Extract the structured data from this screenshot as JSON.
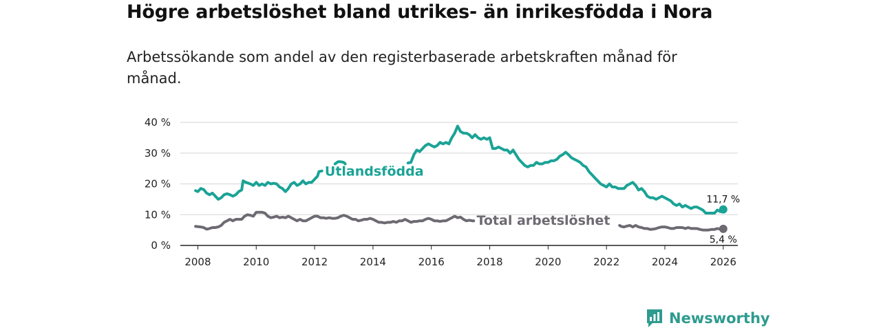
{
  "title": "Högre arbetslöshet bland utrikes- än inrikesfödda i Nora",
  "subtitle": "Arbetssökande som andel av den registerbaserade arbetskraften månad för månad.",
  "brand": {
    "name": "Newsworthy"
  },
  "colors": {
    "foreign": "#1aa396",
    "total": "#6d6a72",
    "grid": "#d4d4d4",
    "axis": "#222222",
    "brand": "#2e9b8f"
  },
  "chart_data": {
    "type": "line",
    "title": "Högre arbetslöshet bland utrikes- än inrikesfödda i Nora",
    "xlabel": "",
    "ylabel": "",
    "xlim": [
      2007.4,
      2026.5
    ],
    "ylim": [
      0,
      40
    ],
    "y_ticks": [
      0,
      10,
      20,
      30,
      40
    ],
    "y_tick_labels": [
      "0 %",
      "10 %",
      "20 %",
      "30 %",
      "40 %"
    ],
    "x_ticks": [
      2008,
      2010,
      2012,
      2014,
      2016,
      2018,
      2020,
      2022,
      2024,
      2026
    ],
    "x_tick_labels": [
      "2008",
      "2010",
      "2012",
      "2014",
      "2016",
      "2018",
      "2020",
      "2022",
      "2024",
      "2026"
    ],
    "grid": true,
    "series": [
      {
        "name": "Utlandsfödda",
        "end_label": "11,7 %",
        "points": [
          [
            2007.92,
            17.8
          ],
          [
            2008.0,
            17.5
          ],
          [
            2008.1,
            18.5
          ],
          [
            2008.2,
            18.2
          ],
          [
            2008.3,
            17.0
          ],
          [
            2008.4,
            16.5
          ],
          [
            2008.5,
            17.0
          ],
          [
            2008.6,
            16.0
          ],
          [
            2008.7,
            15.0
          ],
          [
            2008.8,
            15.5
          ],
          [
            2008.9,
            16.5
          ],
          [
            2009.0,
            16.8
          ],
          [
            2009.1,
            16.5
          ],
          [
            2009.2,
            16.0
          ],
          [
            2009.3,
            16.5
          ],
          [
            2009.4,
            17.5
          ],
          [
            2009.5,
            18.0
          ],
          [
            2009.55,
            21.0
          ],
          [
            2009.65,
            20.5
          ],
          [
            2009.8,
            20.0
          ],
          [
            2009.9,
            19.5
          ],
          [
            2010.0,
            20.5
          ],
          [
            2010.1,
            19.5
          ],
          [
            2010.2,
            20.0
          ],
          [
            2010.3,
            19.5
          ],
          [
            2010.4,
            20.5
          ],
          [
            2010.5,
            20.0
          ],
          [
            2010.6,
            20.2
          ],
          [
            2010.7,
            20.0
          ],
          [
            2010.8,
            19.0
          ],
          [
            2010.9,
            18.5
          ],
          [
            2011.0,
            17.5
          ],
          [
            2011.1,
            18.5
          ],
          [
            2011.2,
            20.0
          ],
          [
            2011.3,
            20.5
          ],
          [
            2011.4,
            19.5
          ],
          [
            2011.5,
            20.0
          ],
          [
            2011.6,
            21.0
          ],
          [
            2011.7,
            20.0
          ],
          [
            2011.8,
            20.5
          ],
          [
            2011.9,
            20.5
          ],
          [
            2012.0,
            21.5
          ],
          [
            2012.1,
            22.5
          ],
          [
            2012.15,
            24.0
          ],
          [
            2012.25,
            24.2
          ],
          null,
          [
            2012.7,
            26.5
          ],
          [
            2012.8,
            27.2
          ],
          [
            2012.9,
            27.2
          ],
          [
            2013.0,
            27.0
          ],
          [
            2013.05,
            26.5
          ],
          null,
          [
            2015.2,
            26.8
          ],
          [
            2015.3,
            27.0
          ],
          [
            2015.4,
            29.5
          ],
          [
            2015.5,
            31.0
          ],
          [
            2015.6,
            30.5
          ],
          [
            2015.7,
            31.5
          ],
          [
            2015.8,
            32.5
          ],
          [
            2015.9,
            33.0
          ],
          [
            2016.0,
            32.5
          ],
          [
            2016.1,
            32.0
          ],
          [
            2016.2,
            32.5
          ],
          [
            2016.3,
            33.5
          ],
          [
            2016.4,
            33.0
          ],
          [
            2016.5,
            33.5
          ],
          [
            2016.6,
            33.0
          ],
          [
            2016.7,
            35.0
          ],
          [
            2016.8,
            36.5
          ],
          [
            2016.9,
            38.8
          ],
          [
            2017.0,
            37.0
          ],
          [
            2017.1,
            36.5
          ],
          [
            2017.2,
            36.5
          ],
          [
            2017.3,
            36.0
          ],
          [
            2017.4,
            35.0
          ],
          [
            2017.5,
            36.0
          ],
          [
            2017.6,
            35.0
          ],
          [
            2017.7,
            34.5
          ],
          [
            2017.8,
            35.0
          ],
          [
            2017.9,
            34.5
          ],
          [
            2018.0,
            35.0
          ],
          [
            2018.1,
            31.5
          ],
          [
            2018.2,
            31.5
          ],
          [
            2018.3,
            32.0
          ],
          [
            2018.4,
            31.5
          ],
          [
            2018.5,
            31.0
          ],
          [
            2018.6,
            31.0
          ],
          [
            2018.7,
            30.0
          ],
          [
            2018.8,
            31.0
          ],
          [
            2018.9,
            29.5
          ],
          [
            2019.0,
            28.0
          ],
          [
            2019.1,
            27.0
          ],
          [
            2019.2,
            26.0
          ],
          [
            2019.3,
            25.5
          ],
          [
            2019.4,
            26.0
          ],
          [
            2019.5,
            26.0
          ],
          [
            2019.6,
            27.0
          ],
          [
            2019.7,
            26.5
          ],
          [
            2019.8,
            26.5
          ],
          [
            2019.9,
            27.0
          ],
          [
            2020.0,
            27.0
          ],
          [
            2020.1,
            27.5
          ],
          [
            2020.2,
            27.5
          ],
          [
            2020.3,
            28.0
          ],
          [
            2020.4,
            29.0
          ],
          [
            2020.5,
            29.5
          ],
          [
            2020.6,
            30.3
          ],
          [
            2020.7,
            29.5
          ],
          [
            2020.8,
            28.5
          ],
          [
            2020.9,
            28.0
          ],
          [
            2021.0,
            27.5
          ],
          [
            2021.1,
            27.0
          ],
          [
            2021.2,
            26.0
          ],
          [
            2021.3,
            25.5
          ],
          [
            2021.4,
            24.0
          ],
          [
            2021.5,
            23.0
          ],
          [
            2021.6,
            22.0
          ],
          [
            2021.7,
            21.0
          ],
          [
            2021.8,
            20.0
          ],
          [
            2021.9,
            19.5
          ],
          [
            2022.0,
            19.0
          ],
          [
            2022.1,
            20.0
          ],
          [
            2022.2,
            19.0
          ],
          [
            2022.3,
            19.0
          ],
          [
            2022.4,
            18.5
          ],
          [
            2022.5,
            18.5
          ],
          [
            2022.6,
            18.5
          ],
          [
            2022.7,
            19.5
          ],
          [
            2022.8,
            20.0
          ],
          [
            2022.9,
            20.5
          ],
          [
            2023.0,
            19.5
          ],
          [
            2023.1,
            18.0
          ],
          [
            2023.2,
            18.5
          ],
          [
            2023.3,
            17.5
          ],
          [
            2023.4,
            16.0
          ],
          [
            2023.5,
            15.5
          ],
          [
            2023.6,
            15.5
          ],
          [
            2023.7,
            15.0
          ],
          [
            2023.8,
            15.5
          ],
          [
            2023.9,
            16.0
          ],
          [
            2024.0,
            15.5
          ],
          [
            2024.1,
            15.0
          ],
          [
            2024.2,
            14.5
          ],
          [
            2024.3,
            13.5
          ],
          [
            2024.4,
            13.0
          ],
          [
            2024.5,
            13.5
          ],
          [
            2024.6,
            12.5
          ],
          [
            2024.7,
            13.0
          ],
          [
            2024.8,
            12.5
          ],
          [
            2024.9,
            12.0
          ],
          [
            2025.0,
            12.5
          ],
          [
            2025.1,
            12.5
          ],
          [
            2025.2,
            12.0
          ],
          [
            2025.3,
            11.5
          ],
          [
            2025.4,
            10.5
          ],
          [
            2025.5,
            10.5
          ],
          [
            2025.6,
            10.5
          ],
          [
            2025.7,
            10.5
          ],
          [
            2025.8,
            11.5
          ],
          [
            2025.9,
            11.0
          ],
          [
            2026.0,
            11.7
          ]
        ]
      },
      {
        "name": "Total arbetslöshet",
        "end_label": "5,4 %",
        "points": [
          [
            2007.92,
            6.2
          ],
          [
            2008.1,
            6.0
          ],
          [
            2008.2,
            5.8
          ],
          [
            2008.3,
            5.3
          ],
          [
            2008.4,
            5.5
          ],
          [
            2008.5,
            5.8
          ],
          [
            2008.6,
            5.8
          ],
          [
            2008.7,
            6.0
          ],
          [
            2008.8,
            6.5
          ],
          [
            2008.9,
            7.5
          ],
          [
            2009.0,
            8.0
          ],
          [
            2009.1,
            8.5
          ],
          [
            2009.2,
            8.0
          ],
          [
            2009.3,
            8.5
          ],
          [
            2009.4,
            8.5
          ],
          [
            2009.5,
            8.5
          ],
          [
            2009.6,
            9.5
          ],
          [
            2009.7,
            10.0
          ],
          [
            2009.8,
            9.8
          ],
          [
            2009.9,
            9.5
          ],
          [
            2010.0,
            10.8
          ],
          [
            2010.1,
            10.8
          ],
          [
            2010.2,
            10.8
          ],
          [
            2010.3,
            10.5
          ],
          [
            2010.4,
            9.5
          ],
          [
            2010.5,
            9.0
          ],
          [
            2010.6,
            9.2
          ],
          [
            2010.7,
            9.5
          ],
          [
            2010.8,
            9.0
          ],
          [
            2010.9,
            9.2
          ],
          [
            2011.0,
            9.0
          ],
          [
            2011.1,
            9.5
          ],
          [
            2011.2,
            9.0
          ],
          [
            2011.3,
            8.5
          ],
          [
            2011.4,
            8.0
          ],
          [
            2011.5,
            8.5
          ],
          [
            2011.6,
            8.0
          ],
          [
            2011.7,
            8.0
          ],
          [
            2011.8,
            8.5
          ],
          [
            2011.9,
            9.0
          ],
          [
            2012.0,
            9.5
          ],
          [
            2012.1,
            9.5
          ],
          [
            2012.2,
            9.0
          ],
          [
            2012.3,
            9.0
          ],
          [
            2012.4,
            8.8
          ],
          [
            2012.5,
            9.0
          ],
          [
            2012.6,
            8.8
          ],
          [
            2012.7,
            8.8
          ],
          [
            2012.8,
            9.0
          ],
          [
            2012.9,
            9.5
          ],
          [
            2013.0,
            9.8
          ],
          [
            2013.1,
            9.5
          ],
          [
            2013.2,
            9.0
          ],
          [
            2013.3,
            8.5
          ],
          [
            2013.4,
            8.5
          ],
          [
            2013.5,
            8.0
          ],
          [
            2013.6,
            8.2
          ],
          [
            2013.7,
            8.5
          ],
          [
            2013.8,
            8.5
          ],
          [
            2013.9,
            8.8
          ],
          [
            2014.0,
            8.5
          ],
          [
            2014.1,
            8.0
          ],
          [
            2014.2,
            7.5
          ],
          [
            2014.3,
            7.5
          ],
          [
            2014.4,
            7.3
          ],
          [
            2014.5,
            7.5
          ],
          [
            2014.6,
            7.5
          ],
          [
            2014.7,
            7.8
          ],
          [
            2014.8,
            7.5
          ],
          [
            2014.9,
            8.0
          ],
          [
            2015.0,
            8.0
          ],
          [
            2015.1,
            8.5
          ],
          [
            2015.2,
            8.0
          ],
          [
            2015.3,
            7.5
          ],
          [
            2015.4,
            7.8
          ],
          [
            2015.5,
            7.8
          ],
          [
            2015.6,
            8.0
          ],
          [
            2015.7,
            8.0
          ],
          [
            2015.8,
            8.5
          ],
          [
            2015.9,
            8.8
          ],
          [
            2016.0,
            8.5
          ],
          [
            2016.1,
            8.0
          ],
          [
            2016.2,
            8.0
          ],
          [
            2016.3,
            7.8
          ],
          [
            2016.4,
            8.0
          ],
          [
            2016.5,
            8.0
          ],
          [
            2016.6,
            8.5
          ],
          [
            2016.7,
            9.0
          ],
          [
            2016.8,
            9.5
          ],
          [
            2016.9,
            9.0
          ],
          [
            2017.0,
            9.2
          ],
          [
            2017.1,
            8.5
          ],
          [
            2017.2,
            8.0
          ],
          [
            2017.3,
            8.2
          ],
          [
            2017.4,
            8.0
          ],
          [
            2017.45,
            8.0
          ],
          null,
          [
            2022.45,
            6.5
          ],
          [
            2022.5,
            6.2
          ],
          [
            2022.6,
            6.0
          ],
          [
            2022.7,
            6.3
          ],
          [
            2022.8,
            6.5
          ],
          [
            2022.9,
            6.0
          ],
          [
            2023.0,
            6.5
          ],
          [
            2023.1,
            6.0
          ],
          [
            2023.2,
            5.8
          ],
          [
            2023.3,
            5.5
          ],
          [
            2023.4,
            5.5
          ],
          [
            2023.5,
            5.2
          ],
          [
            2023.6,
            5.3
          ],
          [
            2023.7,
            5.5
          ],
          [
            2023.8,
            5.8
          ],
          [
            2023.9,
            6.0
          ],
          [
            2024.0,
            6.0
          ],
          [
            2024.1,
            5.8
          ],
          [
            2024.2,
            5.5
          ],
          [
            2024.3,
            5.5
          ],
          [
            2024.4,
            5.8
          ],
          [
            2024.5,
            5.8
          ],
          [
            2024.6,
            5.8
          ],
          [
            2024.7,
            5.5
          ],
          [
            2024.8,
            5.8
          ],
          [
            2024.9,
            5.5
          ],
          [
            2025.0,
            5.5
          ],
          [
            2025.1,
            5.5
          ],
          [
            2025.2,
            5.2
          ],
          [
            2025.3,
            5.0
          ],
          [
            2025.4,
            5.0
          ],
          [
            2025.5,
            5.0
          ],
          [
            2025.6,
            5.2
          ],
          [
            2025.7,
            5.2
          ],
          [
            2025.8,
            5.5
          ],
          [
            2025.9,
            5.3
          ],
          [
            2026.0,
            5.4
          ]
        ]
      }
    ]
  }
}
